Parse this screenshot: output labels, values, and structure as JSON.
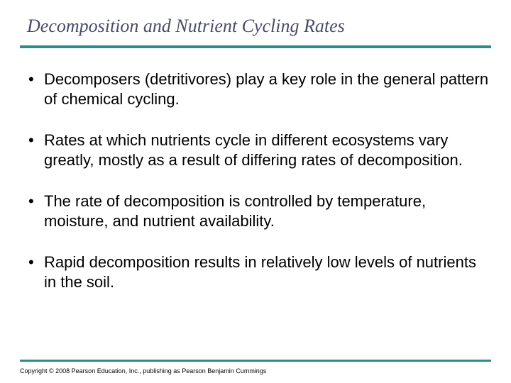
{
  "slide": {
    "title": "Decomposition and Nutrient Cycling Rates",
    "title_color": "#4a4a6a",
    "title_fontsize": 26,
    "title_font": "Georgia, serif",
    "title_style": "italic",
    "rule_color": "#2a8c8c",
    "background_color": "#ffffff",
    "bullets": [
      "Decomposers (detritivores) play a key role in the general pattern of chemical cycling.",
      "Rates at which nutrients cycle in different ecosystems vary greatly, mostly as a result of differing rates of decomposition.",
      "The rate of decomposition is controlled by temperature, moisture, and nutrient availability.",
      "Rapid decomposition results in relatively low levels of nutrients in the soil."
    ],
    "bullet_marker": "•",
    "bullet_fontsize": 22,
    "bullet_color": "#000000",
    "copyright": "Copyright © 2008 Pearson Education, Inc., publishing as Pearson Benjamin Cummings"
  }
}
